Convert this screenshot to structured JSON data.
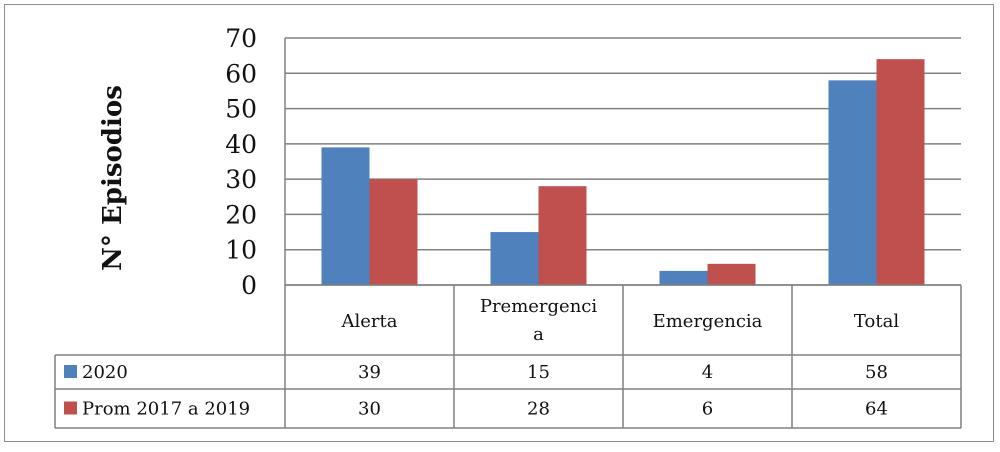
{
  "chart_data": {
    "type": "bar",
    "ylabel": "N° Episodios",
    "xlabel": "",
    "title": "",
    "ylim": [
      0,
      70
    ],
    "yticks": [
      0,
      10,
      20,
      30,
      40,
      50,
      60,
      70
    ],
    "grid": true,
    "legend": "table-left",
    "categories": [
      "Alerta",
      "Premergencia",
      "Emergencia",
      "Total"
    ],
    "category_display": [
      [
        "Alerta"
      ],
      [
        "Premergenci",
        "a"
      ],
      [
        "Emergencia"
      ],
      [
        "Total"
      ]
    ],
    "series": [
      {
        "name": "2020",
        "color": "#4f81bd",
        "values": [
          39,
          15,
          4,
          58
        ]
      },
      {
        "name": "Prom 2017 a 2019",
        "color": "#c0504d",
        "values": [
          30,
          28,
          6,
          64
        ]
      }
    ]
  }
}
